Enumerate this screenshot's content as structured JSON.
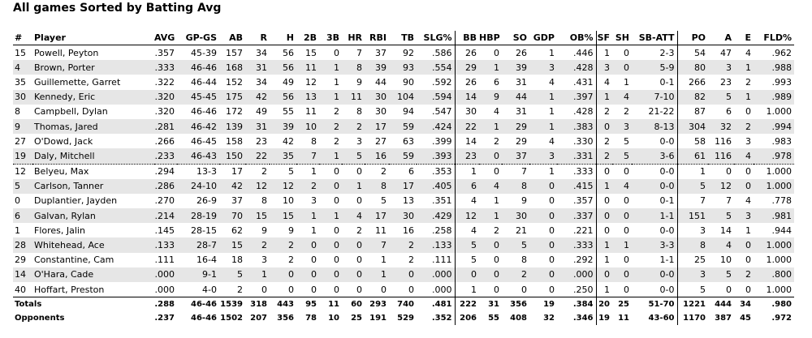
{
  "title": "All games Sorted by Batting Avg",
  "table": {
    "header": [
      "#",
      "Player",
      "AVG",
      "GP-GS",
      "AB",
      "R",
      "H",
      "2B",
      "3B",
      "HR",
      "RBI",
      "TB",
      "SLG%",
      "BB",
      "HBP",
      "SO",
      "GDP",
      "OB%",
      "SF",
      "SH",
      "SB-ATT",
      "PO",
      "A",
      "E",
      "FLD%"
    ],
    "rows": [
      [
        "15",
        "Powell, Peyton",
        ".357",
        "45-39",
        "157",
        "34",
        "56",
        "15",
        "0",
        "7",
        "37",
        "92",
        ".586",
        "26",
        "0",
        "26",
        "1",
        ".446",
        "1",
        "0",
        "2-3",
        "54",
        "47",
        "4",
        ".962"
      ],
      [
        "4",
        "Brown, Porter",
        ".333",
        "46-46",
        "168",
        "31",
        "56",
        "11",
        "1",
        "8",
        "39",
        "93",
        ".554",
        "29",
        "1",
        "39",
        "3",
        ".428",
        "3",
        "0",
        "5-9",
        "80",
        "3",
        "1",
        ".988"
      ],
      [
        "35",
        "Guillemette, Garret",
        ".322",
        "46-44",
        "152",
        "34",
        "49",
        "12",
        "1",
        "9",
        "44",
        "90",
        ".592",
        "26",
        "6",
        "31",
        "4",
        ".431",
        "4",
        "1",
        "0-1",
        "266",
        "23",
        "2",
        ".993"
      ],
      [
        "30",
        "Kennedy, Eric",
        ".320",
        "45-45",
        "175",
        "42",
        "56",
        "13",
        "1",
        "11",
        "30",
        "104",
        ".594",
        "14",
        "9",
        "44",
        "1",
        ".397",
        "1",
        "4",
        "7-10",
        "82",
        "5",
        "1",
        ".989"
      ],
      [
        "8",
        "Campbell, Dylan",
        ".320",
        "46-46",
        "172",
        "49",
        "55",
        "11",
        "2",
        "8",
        "30",
        "94",
        ".547",
        "30",
        "4",
        "31",
        "1",
        ".428",
        "2",
        "2",
        "21-22",
        "87",
        "6",
        "0",
        "1.000"
      ],
      [
        "9",
        "Thomas, Jared",
        ".281",
        "46-42",
        "139",
        "31",
        "39",
        "10",
        "2",
        "2",
        "17",
        "59",
        ".424",
        "22",
        "1",
        "29",
        "1",
        ".383",
        "0",
        "3",
        "8-13",
        "304",
        "32",
        "2",
        ".994"
      ],
      [
        "27",
        "O'Dowd, Jack",
        ".266",
        "46-45",
        "158",
        "23",
        "42",
        "8",
        "2",
        "3",
        "27",
        "63",
        ".399",
        "14",
        "2",
        "29",
        "4",
        ".330",
        "2",
        "5",
        "0-0",
        "58",
        "116",
        "3",
        ".983"
      ],
      [
        "19",
        "Daly, Mitchell",
        ".233",
        "46-43",
        "150",
        "22",
        "35",
        "7",
        "1",
        "5",
        "16",
        "59",
        ".393",
        "23",
        "0",
        "37",
        "3",
        ".331",
        "2",
        "5",
        "3-6",
        "61",
        "116",
        "4",
        ".978"
      ],
      [
        "12",
        "Belyeu, Max",
        ".294",
        "13-3",
        "17",
        "2",
        "5",
        "1",
        "0",
        "0",
        "2",
        "6",
        ".353",
        "1",
        "0",
        "7",
        "1",
        ".333",
        "0",
        "0",
        "0-0",
        "1",
        "0",
        "0",
        "1.000"
      ],
      [
        "5",
        "Carlson, Tanner",
        ".286",
        "24-10",
        "42",
        "12",
        "12",
        "2",
        "0",
        "1",
        "8",
        "17",
        ".405",
        "6",
        "4",
        "8",
        "0",
        ".415",
        "1",
        "4",
        "0-0",
        "5",
        "12",
        "0",
        "1.000"
      ],
      [
        "0",
        "Duplantier, Jayden",
        ".270",
        "26-9",
        "37",
        "8",
        "10",
        "3",
        "0",
        "0",
        "5",
        "13",
        ".351",
        "4",
        "1",
        "9",
        "0",
        ".357",
        "0",
        "0",
        "0-1",
        "7",
        "7",
        "4",
        ".778"
      ],
      [
        "6",
        "Galvan, Rylan",
        ".214",
        "28-19",
        "70",
        "15",
        "15",
        "1",
        "1",
        "4",
        "17",
        "30",
        ".429",
        "12",
        "1",
        "30",
        "0",
        ".337",
        "0",
        "0",
        "1-1",
        "151",
        "5",
        "3",
        ".981"
      ],
      [
        "1",
        "Flores, Jalin",
        ".145",
        "28-15",
        "62",
        "9",
        "9",
        "1",
        "0",
        "2",
        "11",
        "16",
        ".258",
        "4",
        "2",
        "21",
        "0",
        ".221",
        "0",
        "0",
        "0-0",
        "3",
        "14",
        "1",
        ".944"
      ],
      [
        "28",
        "Whitehead, Ace",
        ".133",
        "28-7",
        "15",
        "2",
        "2",
        "0",
        "0",
        "0",
        "7",
        "2",
        ".133",
        "5",
        "0",
        "5",
        "0",
        ".333",
        "1",
        "1",
        "3-3",
        "8",
        "4",
        "0",
        "1.000"
      ],
      [
        "29",
        "Constantine, Cam",
        ".111",
        "16-4",
        "18",
        "3",
        "2",
        "0",
        "0",
        "0",
        "1",
        "2",
        ".111",
        "5",
        "0",
        "8",
        "0",
        ".292",
        "1",
        "0",
        "1-1",
        "25",
        "10",
        "0",
        "1.000"
      ],
      [
        "14",
        "O'Hara, Cade",
        ".000",
        "9-1",
        "5",
        "1",
        "0",
        "0",
        "0",
        "0",
        "1",
        "0",
        ".000",
        "0",
        "0",
        "2",
        "0",
        ".000",
        "0",
        "0",
        "0-0",
        "3",
        "5",
        "2",
        ".800"
      ],
      [
        "40",
        "Hoffart, Preston",
        ".000",
        "4-0",
        "2",
        "0",
        "0",
        "0",
        "0",
        "0",
        "0",
        "0",
        ".000",
        "1",
        "0",
        "0",
        "0",
        ".250",
        "1",
        "0",
        "0-0",
        "5",
        "0",
        "0",
        "1.000"
      ]
    ],
    "totals": [
      [
        "Totals",
        ".288",
        "46-46",
        "1539",
        "318",
        "443",
        "95",
        "11",
        "60",
        "293",
        "740",
        ".481",
        "222",
        "31",
        "356",
        "19",
        ".384",
        "20",
        "25",
        "51-70",
        "1221",
        "444",
        "34",
        ".980"
      ],
      [
        "Opponents",
        ".237",
        "46-46",
        "1502",
        "207",
        "356",
        "78",
        "10",
        "25",
        "191",
        "529",
        ".352",
        "206",
        "55",
        "408",
        "32",
        ".346",
        "19",
        "11",
        "43-60",
        "1170",
        "387",
        "45",
        ".972"
      ]
    ]
  }
}
